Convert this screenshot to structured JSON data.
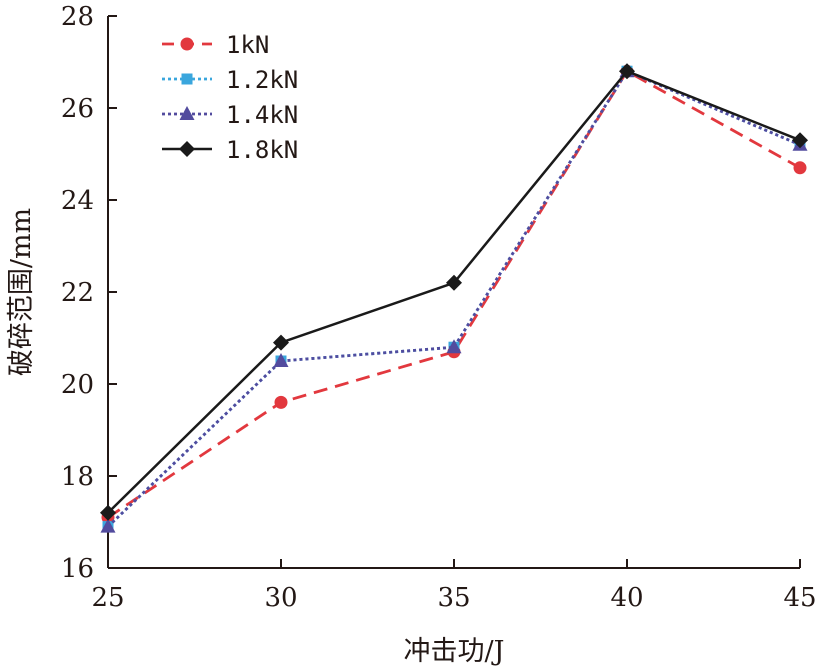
{
  "chart_data": {
    "type": "line",
    "xlabel": "冲击功/J",
    "ylabel": "破碎范围/mm",
    "x": [
      25,
      30,
      35,
      40,
      45
    ],
    "x_ticks": [
      "25",
      "30",
      "35",
      "40",
      "45"
    ],
    "y_ticks": [
      "16",
      "18",
      "20",
      "22",
      "24",
      "26",
      "28"
    ],
    "xlim": [
      25,
      45
    ],
    "ylim": [
      16,
      28
    ],
    "grid": false,
    "legend_position": "top-left",
    "series": [
      {
        "name": "1kN",
        "values": [
          17.1,
          19.6,
          20.7,
          26.8,
          24.7
        ],
        "color": "#e2383e",
        "line_style": "dashed",
        "marker": "circle"
      },
      {
        "name": "1.2kN",
        "values": [
          16.9,
          20.5,
          20.8,
          26.8,
          25.2
        ],
        "color": "#3aa6dd",
        "line_style": "dotted",
        "marker": "square"
      },
      {
        "name": "1.4kN",
        "values": [
          16.9,
          20.5,
          20.8,
          26.8,
          25.2
        ],
        "color": "#524b9e",
        "line_style": "dotted",
        "marker": "triangle"
      },
      {
        "name": "1.8kN",
        "values": [
          17.2,
          20.9,
          22.2,
          26.8,
          25.3
        ],
        "color": "#1a1a1a",
        "line_style": "solid",
        "marker": "diamond"
      }
    ]
  }
}
